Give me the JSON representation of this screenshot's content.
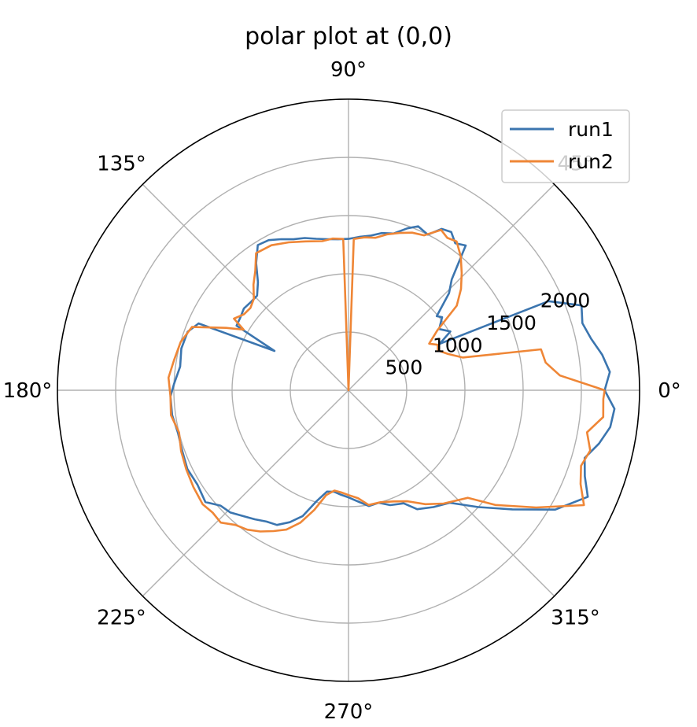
{
  "chart_data": {
    "type": "line",
    "projection": "polar",
    "title": "polar plot at (0,0)",
    "theta_unit": "degrees",
    "theta_ticks": [
      "0°",
      "45°",
      "90°",
      "135°",
      "180°",
      "225°",
      "270°",
      "315°"
    ],
    "r_ticks": [
      500,
      1000,
      1500,
      2000
    ],
    "r_tick_labels": [
      "500",
      "1000",
      "1500",
      "2000"
    ],
    "rlim": [
      0,
      2500
    ],
    "grid": true,
    "legend_position": "top-right",
    "series": [
      {
        "name": "run1",
        "color": "#3b75af",
        "points": [
          [
            0,
            2200
          ],
          [
            4,
            2250
          ],
          [
            8,
            2200
          ],
          [
            12,
            2130
          ],
          [
            16,
            2090
          ],
          [
            20,
            2130
          ],
          [
            24,
            1880
          ],
          [
            27,
            880
          ],
          [
            30,
            1010
          ],
          [
            34,
            940
          ],
          [
            38,
            1020
          ],
          [
            40,
            990
          ],
          [
            44,
            1200
          ],
          [
            47,
            1300
          ],
          [
            51,
            1600
          ],
          [
            54,
            1560
          ],
          [
            57,
            1620
          ],
          [
            60,
            1600
          ],
          [
            63,
            1500
          ],
          [
            67,
            1530
          ],
          [
            70,
            1480
          ],
          [
            74,
            1400
          ],
          [
            78,
            1380
          ],
          [
            82,
            1340
          ],
          [
            86,
            1320
          ],
          [
            90,
            1300
          ],
          [
            94,
            1300
          ],
          [
            98,
            1310
          ],
          [
            102,
            1330
          ],
          [
            106,
            1360
          ],
          [
            110,
            1380
          ],
          [
            114,
            1420
          ],
          [
            118,
            1460
          ],
          [
            122,
            1470
          ],
          [
            126,
            1350
          ],
          [
            130,
            1210
          ],
          [
            134,
            1130
          ],
          [
            138,
            1130
          ],
          [
            142,
            1140
          ],
          [
            146,
            1120
          ],
          [
            150,
            1110
          ],
          [
            152,
            720
          ],
          [
            156,
            1410
          ],
          [
            160,
            1470
          ],
          [
            166,
            1480
          ],
          [
            172,
            1460
          ],
          [
            178,
            1500
          ],
          [
            182,
            1530
          ],
          [
            188,
            1530
          ],
          [
            194,
            1510
          ],
          [
            200,
            1520
          ],
          [
            206,
            1540
          ],
          [
            212,
            1530
          ],
          [
            218,
            1560
          ],
          [
            222,
            1480
          ],
          [
            226,
            1460
          ],
          [
            230,
            1410
          ],
          [
            234,
            1370
          ],
          [
            238,
            1330
          ],
          [
            242,
            1310
          ],
          [
            246,
            1240
          ],
          [
            250,
            1150
          ],
          [
            254,
            990
          ],
          [
            258,
            890
          ],
          [
            262,
            880
          ],
          [
            266,
            900
          ],
          [
            270,
            920
          ],
          [
            275,
            960
          ],
          [
            280,
            1010
          ],
          [
            285,
            1000
          ],
          [
            290,
            1050
          ],
          [
            296,
            1080
          ],
          [
            300,
            1180
          ],
          [
            306,
            1240
          ],
          [
            312,
            1300
          ],
          [
            318,
            1500
          ],
          [
            324,
            1740
          ],
          [
            330,
            2050
          ],
          [
            336,
            2250
          ],
          [
            340,
            2160
          ],
          [
            344,
            2110
          ],
          [
            348,
            2200
          ],
          [
            352,
            2270
          ],
          [
            356,
            2290
          ],
          [
            360,
            2200
          ]
        ]
      },
      {
        "name": "run2",
        "color": "#ef8636",
        "points": [
          [
            0,
            2200
          ],
          [
            4,
            1820
          ],
          [
            8,
            1710
          ],
          [
            12,
            1690
          ],
          [
            16,
            1020
          ],
          [
            20,
            910
          ],
          [
            24,
            840
          ],
          [
            27,
            860
          ],
          [
            30,
            800
          ],
          [
            34,
            920
          ],
          [
            38,
            1180
          ],
          [
            42,
            1300
          ],
          [
            46,
            1400
          ],
          [
            50,
            1500
          ],
          [
            54,
            1580
          ],
          [
            57,
            1560
          ],
          [
            60,
            1590
          ],
          [
            64,
            1480
          ],
          [
            68,
            1460
          ],
          [
            72,
            1420
          ],
          [
            76,
            1380
          ],
          [
            80,
            1330
          ],
          [
            84,
            1320
          ],
          [
            88,
            1300
          ],
          [
            90,
            0
          ],
          [
            92,
            1300
          ],
          [
            96,
            1310
          ],
          [
            100,
            1300
          ],
          [
            106,
            1330
          ],
          [
            112,
            1370
          ],
          [
            118,
            1410
          ],
          [
            124,
            1420
          ],
          [
            128,
            1300
          ],
          [
            132,
            1220
          ],
          [
            136,
            1130
          ],
          [
            140,
            1100
          ],
          [
            144,
            1110
          ],
          [
            148,
            1160
          ],
          [
            150,
            1040
          ],
          [
            153,
            1180
          ],
          [
            158,
            1450
          ],
          [
            164,
            1500
          ],
          [
            170,
            1520
          ],
          [
            176,
            1550
          ],
          [
            182,
            1530
          ],
          [
            188,
            1540
          ],
          [
            194,
            1500
          ],
          [
            200,
            1530
          ],
          [
            206,
            1550
          ],
          [
            212,
            1570
          ],
          [
            218,
            1590
          ],
          [
            222,
            1570
          ],
          [
            226,
            1580
          ],
          [
            230,
            1510
          ],
          [
            234,
            1480
          ],
          [
            238,
            1430
          ],
          [
            242,
            1370
          ],
          [
            246,
            1310
          ],
          [
            250,
            1210
          ],
          [
            254,
            1070
          ],
          [
            258,
            920
          ],
          [
            262,
            870
          ],
          [
            266,
            880
          ],
          [
            270,
            900
          ],
          [
            275,
            930
          ],
          [
            280,
            1000
          ],
          [
            286,
            1000
          ],
          [
            292,
            1030
          ],
          [
            298,
            1080
          ],
          [
            304,
            1180
          ],
          [
            310,
            1270
          ],
          [
            318,
            1380
          ],
          [
            322,
            1600
          ],
          [
            328,
            1900
          ],
          [
            334,
            2250
          ],
          [
            338,
            2150
          ],
          [
            342,
            2100
          ],
          [
            346,
            2140
          ],
          [
            350,
            2080
          ],
          [
            354,
            2200
          ],
          [
            358,
            2190
          ],
          [
            360,
            2200
          ]
        ]
      }
    ]
  }
}
